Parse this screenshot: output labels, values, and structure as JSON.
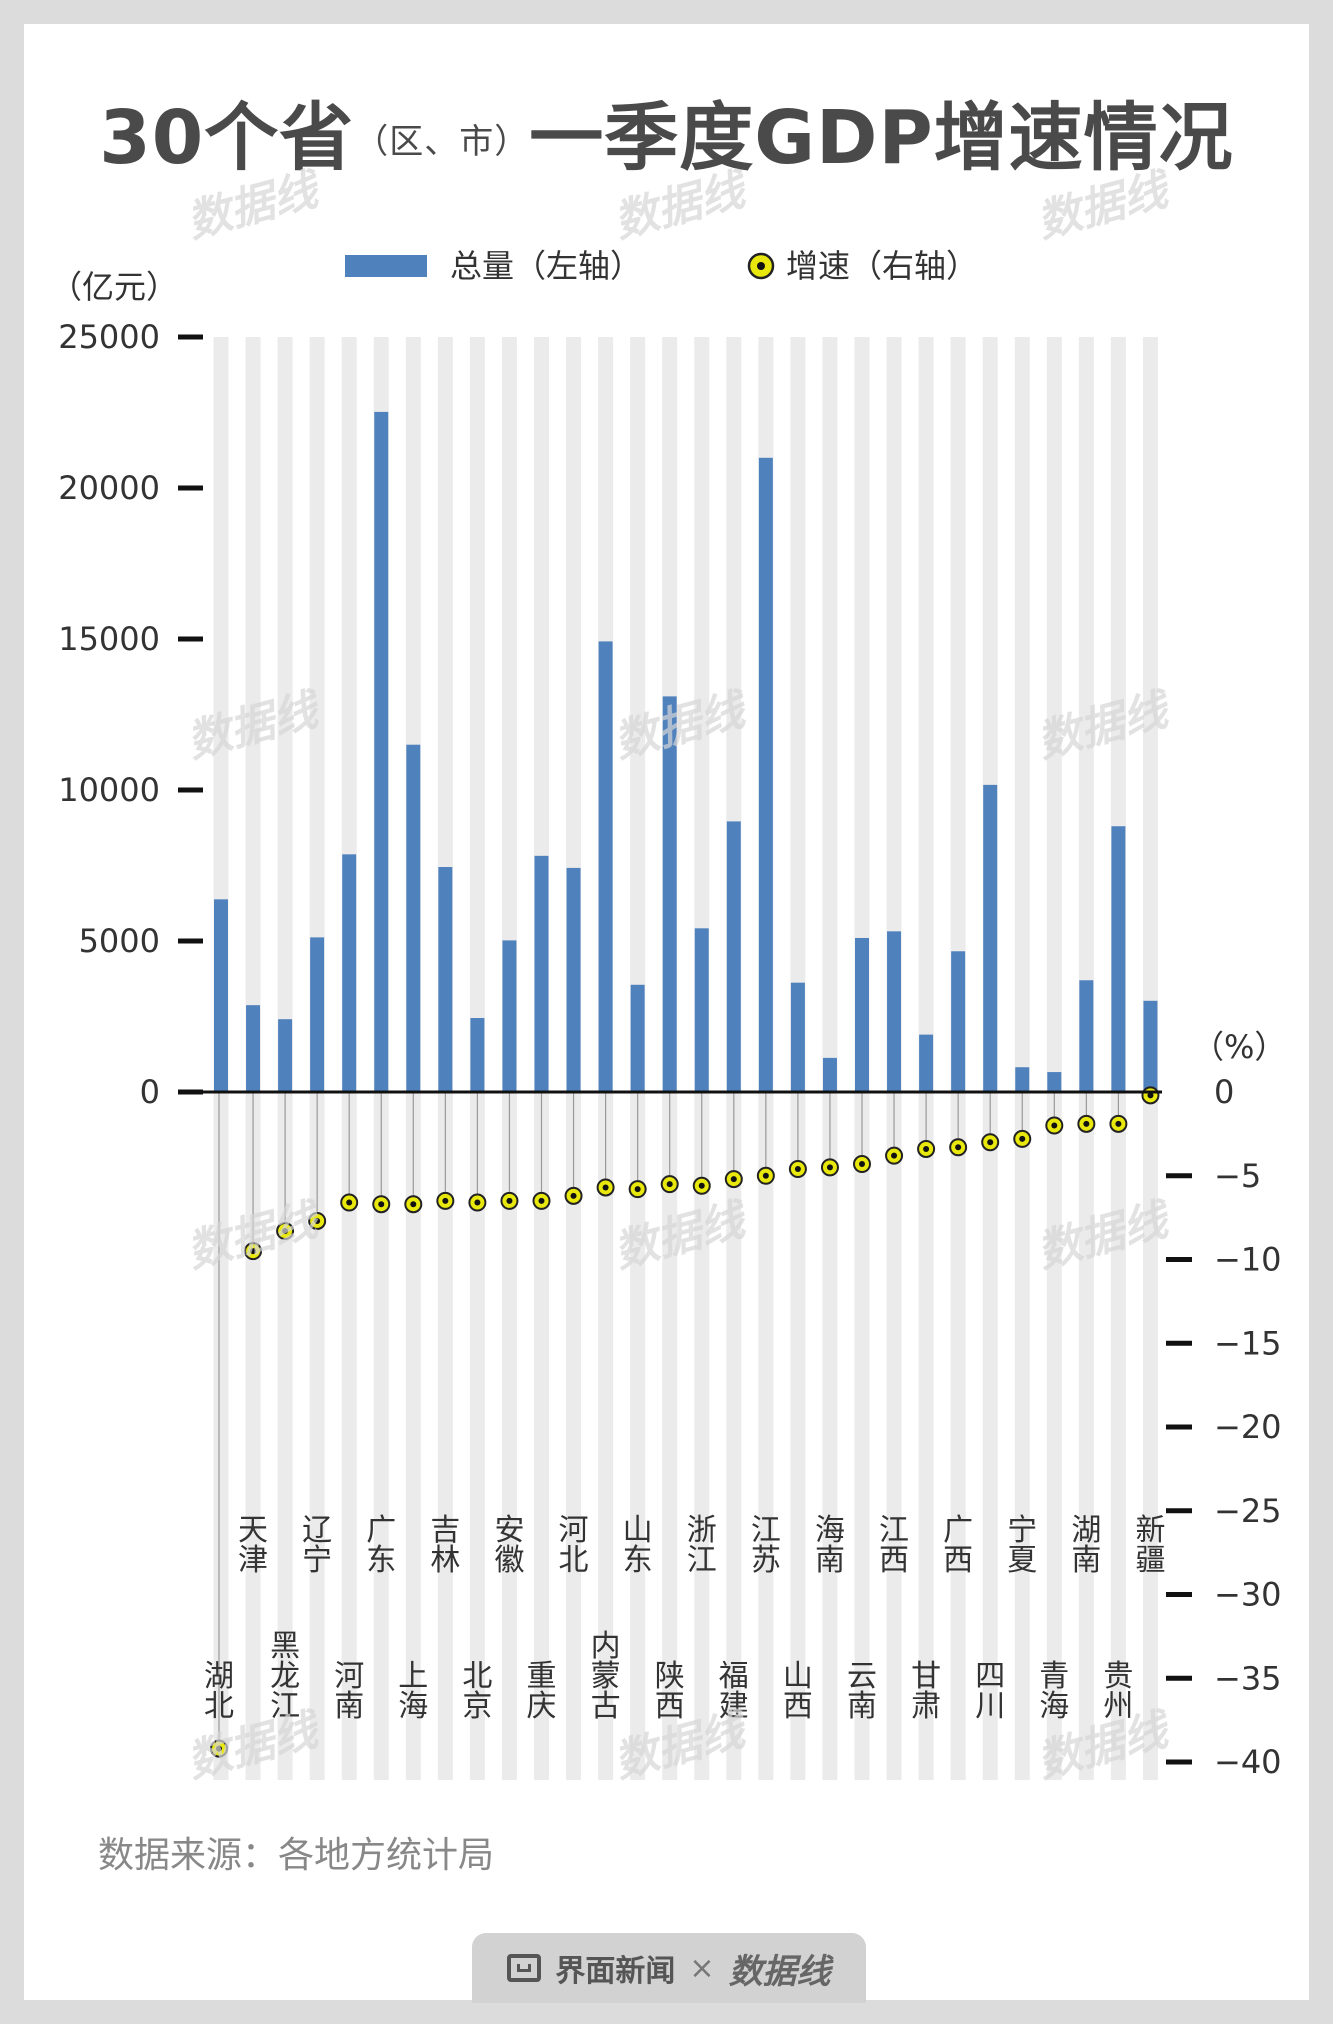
{
  "title": {
    "main_prefix": "30个省",
    "paren": "（区、市）",
    "main_suffix": "一季度GDP增速情况"
  },
  "legend": {
    "bar_label": "总量（左轴）",
    "dot_label": "增速（右轴）"
  },
  "source": "数据来源：各地方统计局",
  "footer": {
    "brand": "界面新闻",
    "times": "×",
    "brand2": "数据线"
  },
  "watermark": "数据线",
  "colors": {
    "bar": "#4f81bd",
    "dot_fill": "#e8e80c",
    "dot_center": "#111111",
    "stripe": "#ebebeb"
  },
  "chart_data": {
    "type": "bar",
    "title": "30个省（区、市）一季度GDP增速情况",
    "left_axis": {
      "unit": "（亿元）",
      "ticks": [
        "25000",
        "20000",
        "15000",
        "10000",
        "5000",
        "0"
      ],
      "ylim": [
        0,
        25000
      ]
    },
    "right_axis": {
      "unit": "（%）",
      "ticks": [
        "0",
        "-5",
        "-10",
        "-15",
        "-20",
        "-25",
        "-30",
        "-35",
        "-40"
      ],
      "ylim": [
        -40,
        0
      ]
    },
    "categories": [
      "湖北",
      "天津",
      "黑龙江",
      "辽宁",
      "河南",
      "广东",
      "上海",
      "吉林",
      "北京",
      "安徽",
      "重庆",
      "河北",
      "内蒙古",
      "山东",
      "陕西",
      "浙江",
      "福建",
      "江苏",
      "山西",
      "海南",
      "云南",
      "江西",
      "甘肃",
      "广西",
      "四川",
      "宁夏",
      "青海",
      "湖南",
      "贵州",
      "新疆"
    ],
    "series": [
      {
        "name": "总量（左轴）",
        "axis": "left",
        "values": [
          6380,
          2875,
          2410,
          5120,
          7870,
          22520,
          11500,
          7450,
          2450,
          5020,
          7820,
          7420,
          14920,
          3550,
          13100,
          5420,
          8960,
          21000,
          3620,
          1130,
          5100,
          5320,
          1900,
          4660,
          10170,
          820,
          660,
          3700,
          8800,
          3020
        ]
      },
      {
        "name": "增速（右轴）",
        "axis": "right",
        "values": [
          -39.2,
          -9.5,
          -8.3,
          -7.7,
          -6.6,
          -6.7,
          -6.7,
          -6.5,
          -6.6,
          -6.5,
          -6.5,
          -6.2,
          -5.7,
          -5.8,
          -5.5,
          -5.6,
          -5.2,
          -5.0,
          -4.6,
          -4.5,
          -4.3,
          -3.8,
          -3.4,
          -3.3,
          -3.0,
          -2.8,
          -2.0,
          -1.9,
          -1.9,
          -0.2
        ]
      }
    ]
  }
}
